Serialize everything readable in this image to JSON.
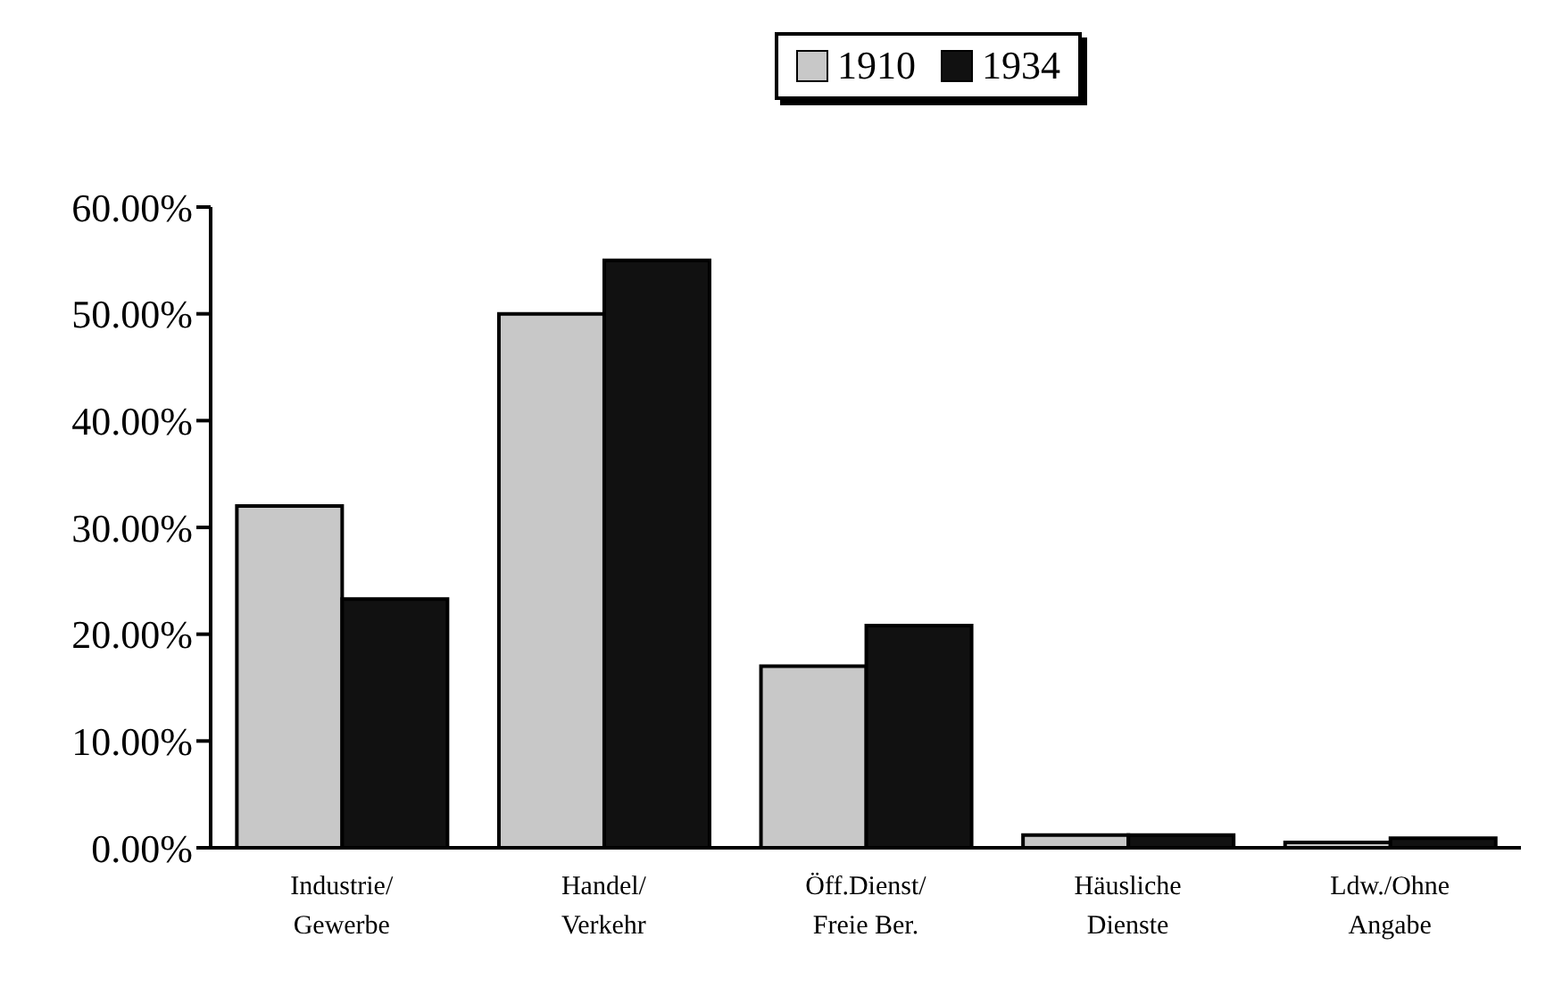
{
  "chart_data": {
    "type": "bar",
    "categories": [
      "Industrie/\nGewerbe",
      "Handel/\nVerkehr",
      "Öff.Dienst/\nFreie Ber.",
      "Häusliche\nDienste",
      "Ldw./Ohne\nAngabe"
    ],
    "series": [
      {
        "name": "1910",
        "color": "#c8c8c8",
        "values": [
          32,
          50,
          17,
          1.2,
          0.5
        ]
      },
      {
        "name": "1934",
        "color": "#111111",
        "values": [
          23.3,
          55,
          20.8,
          1.2,
          0.9
        ]
      }
    ],
    "ylim": [
      0,
      60
    ],
    "yticks": [
      {
        "value": 0,
        "label": "0.00%"
      },
      {
        "value": 10,
        "label": "10.00%"
      },
      {
        "value": 20,
        "label": "20.00%"
      },
      {
        "value": 30,
        "label": "30.00%"
      },
      {
        "value": 40,
        "label": "40.00%"
      },
      {
        "value": 50,
        "label": "50.00%"
      },
      {
        "value": 60,
        "label": "60.00%"
      }
    ],
    "grid": false,
    "legend": "top"
  }
}
